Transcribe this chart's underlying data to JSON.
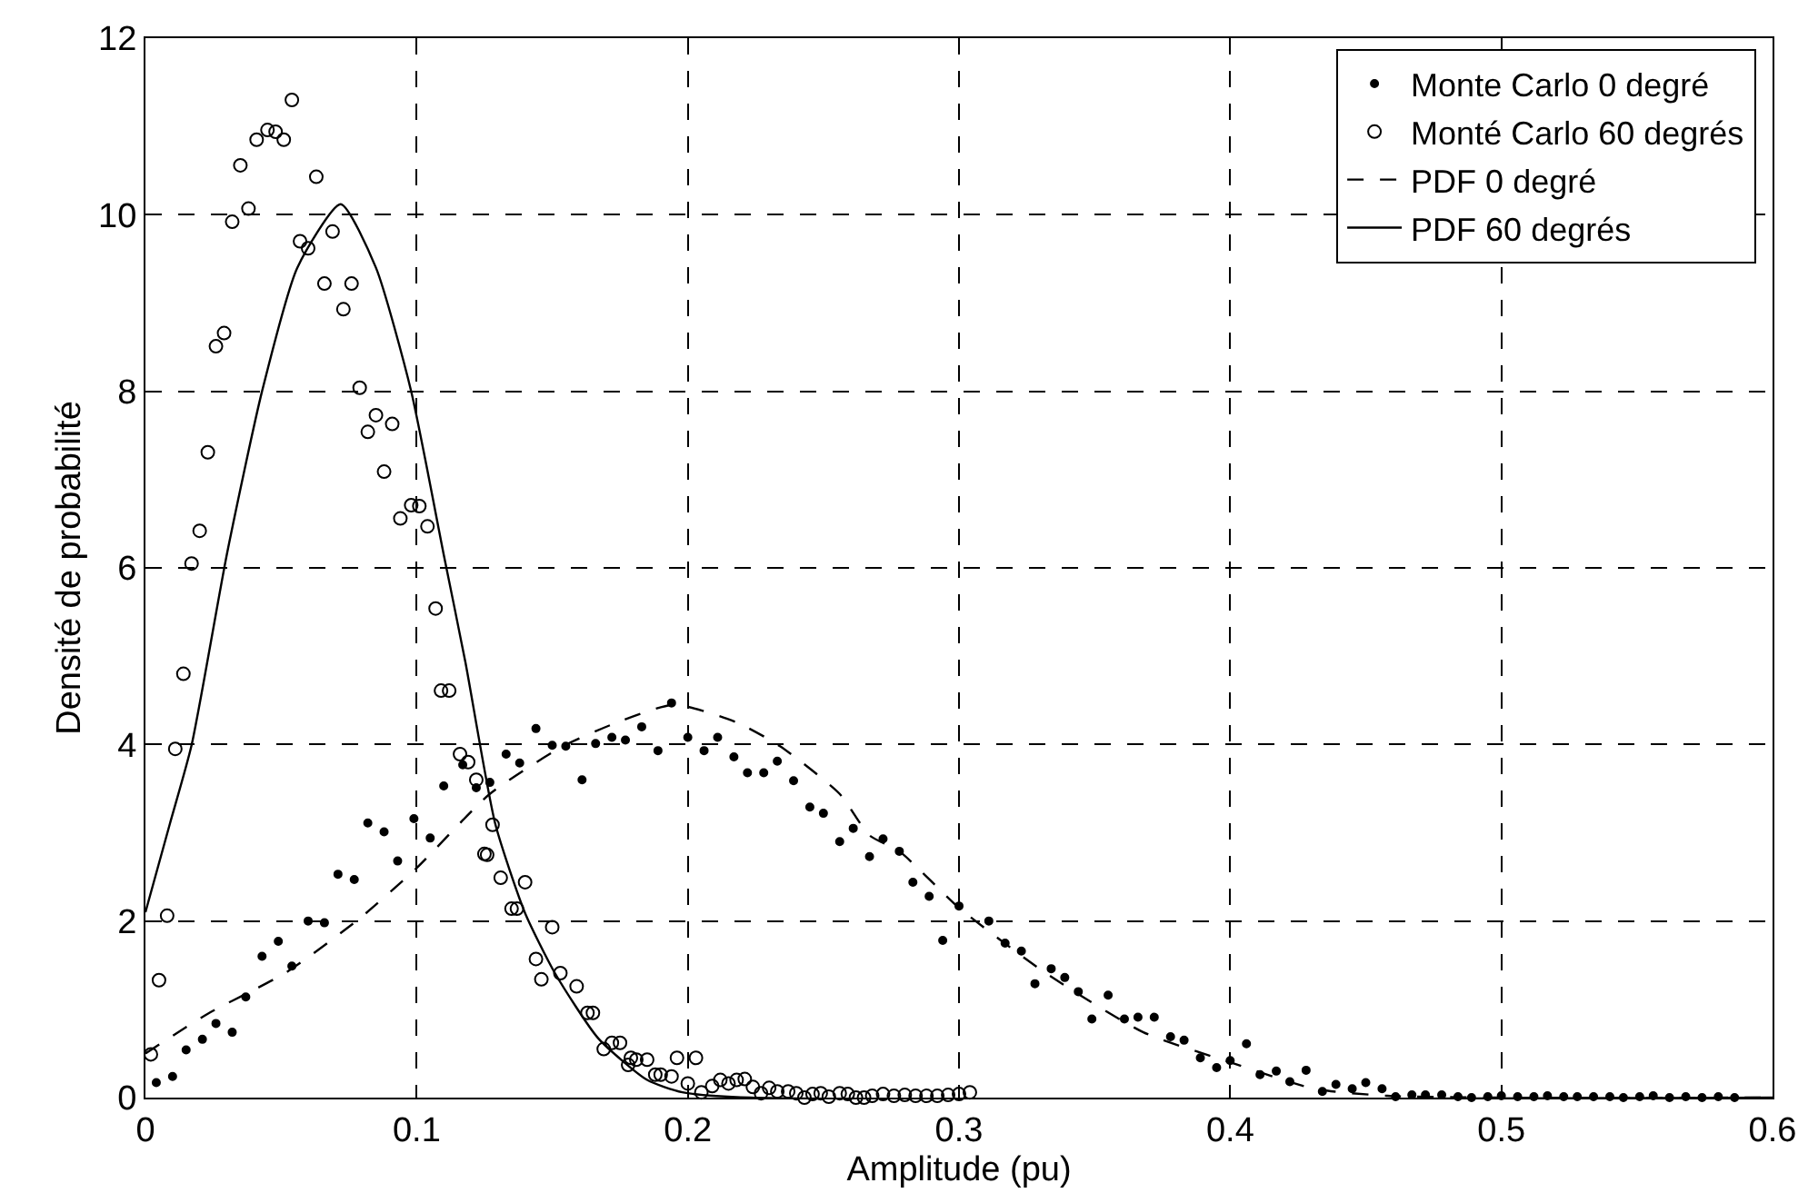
{
  "chart_data": {
    "type": "scatter",
    "xlabel": "Amplitude (pu)",
    "ylabel": "Densité de probabilité",
    "xlim": [
      0,
      0.6
    ],
    "xticks": [
      0,
      0.1,
      0.2,
      0.3,
      0.4,
      0.5,
      0.6
    ],
    "ylim": [
      0,
      12
    ],
    "yticks": [
      0,
      2,
      4,
      6,
      8,
      10,
      12
    ],
    "grid": true,
    "legend": "top right",
    "series": [
      {
        "name": "Monte Carlo 0 degré",
        "marker": "circle",
        "color": "#000000",
        "x": [
          0.004,
          0.01,
          0.015,
          0.021,
          0.026,
          0.032,
          0.037,
          0.043,
          0.049,
          0.054,
          0.06,
          0.066,
          0.071,
          0.077,
          0.082,
          0.088,
          0.093,
          0.099,
          0.105,
          0.11,
          0.117,
          0.122,
          0.127,
          0.133,
          0.138,
          0.144,
          0.15,
          0.155,
          0.161,
          0.166,
          0.172,
          0.177,
          0.183,
          0.189,
          0.194,
          0.2,
          0.206,
          0.211,
          0.217,
          0.222,
          0.228,
          0.233,
          0.239,
          0.245,
          0.25,
          0.256,
          0.261,
          0.267,
          0.272,
          0.278,
          0.283,
          0.289,
          0.294,
          0.3,
          0.311,
          0.317,
          0.323,
          0.328,
          0.334,
          0.339,
          0.344,
          0.349,
          0.355,
          0.361,
          0.366,
          0.372,
          0.378,
          0.383,
          0.389,
          0.395,
          0.4,
          0.406,
          0.411,
          0.417,
          0.422,
          0.428,
          0.434,
          0.439,
          0.445,
          0.45,
          0.456,
          0.461,
          0.467,
          0.472,
          0.478,
          0.484,
          0.489,
          0.495,
          0.5,
          0.506,
          0.512,
          0.517,
          0.523,
          0.528,
          0.534,
          0.54,
          0.545,
          0.551,
          0.556,
          0.562,
          0.568,
          0.574,
          0.58,
          0.586
        ],
        "values": [
          0.17,
          0.24,
          0.54,
          0.66,
          0.84,
          0.74,
          1.14,
          1.6,
          1.77,
          1.49,
          2.0,
          1.98,
          2.53,
          2.47,
          3.11,
          3.01,
          2.68,
          3.16,
          2.94,
          3.53,
          3.77,
          3.51,
          3.57,
          3.89,
          3.79,
          4.18,
          3.99,
          3.98,
          3.6,
          4.01,
          4.08,
          4.05,
          4.2,
          3.93,
          4.47,
          4.08,
          3.93,
          4.08,
          3.86,
          3.68,
          3.68,
          3.81,
          3.59,
          3.29,
          3.22,
          2.9,
          3.05,
          2.73,
          2.93,
          2.79,
          2.44,
          2.28,
          1.78,
          2.17,
          2.0,
          1.75,
          1.66,
          1.29,
          1.46,
          1.36,
          1.2,
          0.89,
          1.16,
          0.89,
          0.91,
          0.91,
          0.69,
          0.65,
          0.45,
          0.34,
          0.42,
          0.61,
          0.26,
          0.3,
          0.18,
          0.31,
          0.07,
          0.15,
          0.1,
          0.17,
          0.1,
          0.01,
          0.03,
          0.03,
          0.03,
          0.01,
          0.0,
          0.01,
          0.02,
          0.01,
          0.01,
          0.02,
          0.01,
          0.01,
          0.01,
          0.01,
          0.0,
          0.01,
          0.02,
          0.0,
          0.01,
          0.0,
          0.01,
          0.0
        ]
      },
      {
        "name": "Monté Carlo 60 degrés",
        "marker": "circle",
        "color": "#000000",
        "x": [
          0.002,
          0.005,
          0.008,
          0.011,
          0.014,
          0.017,
          0.02,
          0.023,
          0.026,
          0.029,
          0.032,
          0.035,
          0.038,
          0.041,
          0.045,
          0.048,
          0.051,
          0.054,
          0.057,
          0.06,
          0.063,
          0.066,
          0.069,
          0.073,
          0.076,
          0.079,
          0.082,
          0.085,
          0.088,
          0.091,
          0.094,
          0.098,
          0.101,
          0.104,
          0.107,
          0.109,
          0.112,
          0.116,
          0.119,
          0.122,
          0.125,
          0.128,
          0.126,
          0.131,
          0.135,
          0.137,
          0.14,
          0.144,
          0.146,
          0.15,
          0.153,
          0.159,
          0.163,
          0.165,
          0.169,
          0.172,
          0.175,
          0.178,
          0.179,
          0.181,
          0.185,
          0.188,
          0.19,
          0.194,
          0.196,
          0.2,
          0.203,
          0.205,
          0.209,
          0.212,
          0.215,
          0.218,
          0.221,
          0.224,
          0.227,
          0.23,
          0.233,
          0.237,
          0.24,
          0.243,
          0.246,
          0.249,
          0.252,
          0.256,
          0.259,
          0.262,
          0.265,
          0.268,
          0.272,
          0.276,
          0.28,
          0.284,
          0.288,
          0.292,
          0.296,
          0.3,
          0.304
        ],
        "values": [
          0.49,
          1.33,
          2.06,
          3.95,
          4.8,
          6.05,
          6.42,
          7.31,
          8.51,
          8.66,
          9.92,
          10.56,
          10.07,
          10.85,
          10.96,
          10.94,
          10.85,
          11.3,
          9.7,
          9.62,
          10.43,
          9.22,
          9.81,
          8.93,
          9.22,
          8.04,
          7.54,
          7.73,
          7.09,
          7.63,
          6.56,
          6.71,
          6.7,
          6.47,
          5.54,
          4.61,
          4.61,
          3.89,
          3.8,
          3.6,
          2.76,
          3.09,
          2.75,
          2.49,
          2.14,
          2.14,
          2.44,
          1.57,
          1.34,
          1.93,
          1.41,
          1.26,
          0.96,
          0.96,
          0.55,
          0.62,
          0.62,
          0.37,
          0.45,
          0.43,
          0.43,
          0.26,
          0.26,
          0.24,
          0.45,
          0.16,
          0.45,
          0.06,
          0.13,
          0.2,
          0.16,
          0.2,
          0.21,
          0.12,
          0.05,
          0.11,
          0.07,
          0.07,
          0.05,
          0.0,
          0.04,
          0.05,
          0.01,
          0.05,
          0.04,
          0.0,
          0.0,
          0.02,
          0.04,
          0.02,
          0.03,
          0.02,
          0.02,
          0.02,
          0.03,
          0.04,
          0.06
        ]
      },
      {
        "name": "PDF 0 degré",
        "type": "line",
        "marker": "none",
        "line_style": "dashed",
        "color": "#000000",
        "x": [
          0,
          0.023,
          0.052,
          0.079,
          0.1,
          0.127,
          0.154,
          0.174,
          0.195,
          0.218,
          0.234,
          0.256,
          0.267,
          0.278,
          0.3,
          0.332,
          0.368,
          0.4,
          0.431,
          0.458,
          0.5,
          0.6
        ],
        "values": [
          0.5,
          0.95,
          1.42,
          2.03,
          2.6,
          3.44,
          3.98,
          4.25,
          4.45,
          4.25,
          3.98,
          3.44,
          2.97,
          2.79,
          2.15,
          1.41,
          0.74,
          0.4,
          0.1,
          0.02,
          0.0,
          0.0
        ]
      },
      {
        "name": "PDF 60 degrés",
        "type": "line",
        "marker": "none",
        "line_style": "solid",
        "color": "#000000",
        "x": [
          0,
          0.009,
          0.017,
          0.03,
          0.043,
          0.056,
          0.072,
          0.085,
          0.098,
          0.11,
          0.118,
          0.129,
          0.14,
          0.151,
          0.167,
          0.185,
          0.198,
          0.223,
          0.6
        ],
        "values": [
          2.1,
          3.1,
          3.99,
          6.15,
          8.0,
          9.4,
          10.12,
          9.4,
          8.0,
          6.15,
          4.93,
          3.1,
          2.09,
          1.41,
          0.67,
          0.2,
          0.06,
          0.0,
          0.0
        ]
      }
    ]
  }
}
